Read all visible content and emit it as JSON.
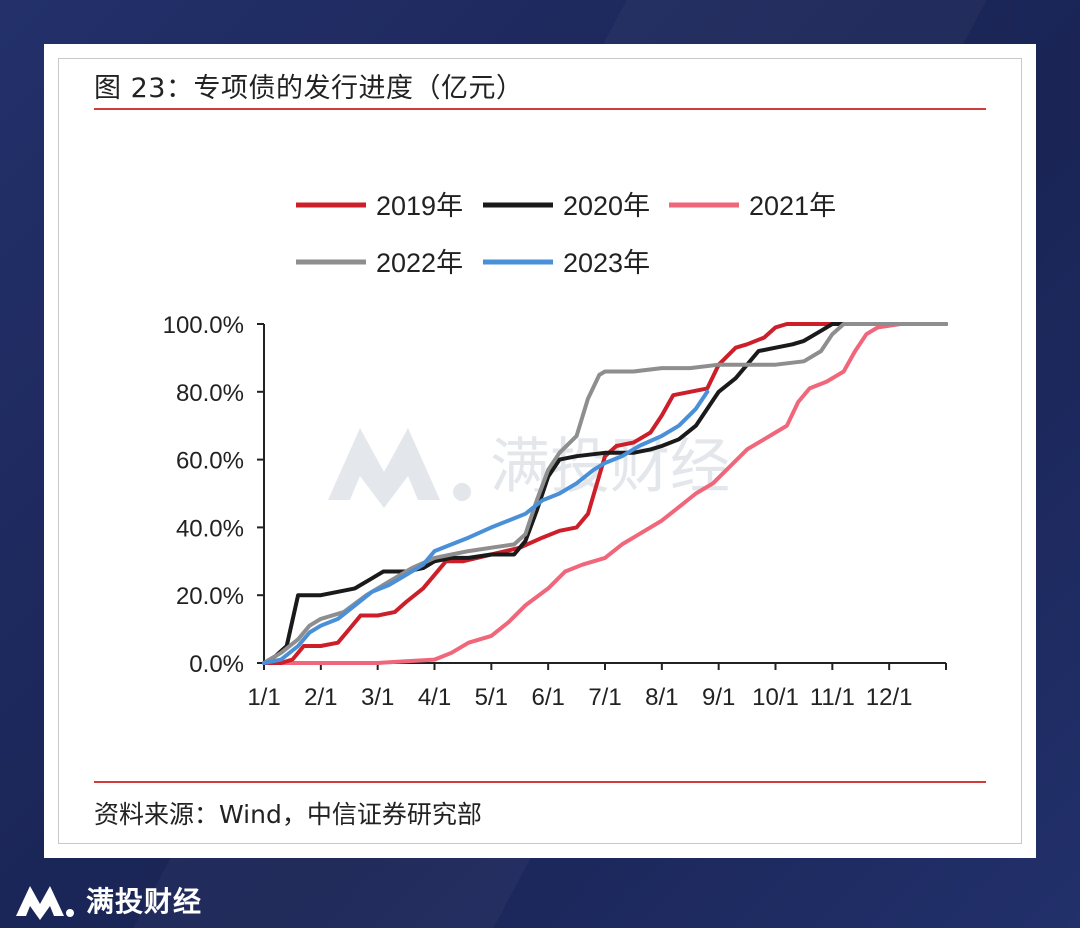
{
  "figure": {
    "title": "图 23：专项债的发行进度（亿元）",
    "source": "资料来源：Wind，中信证券研究部"
  },
  "watermark": {
    "text": "满投财经",
    "icon": "brand-m-logo-icon"
  },
  "brand": {
    "text": "满投财经",
    "icon": "brand-m-logo-icon"
  },
  "colors": {
    "2019": "#cc1f2a",
    "2020": "#1a1a1a",
    "2021": "#f0667a",
    "2022": "#8e8e8e",
    "2023": "#4a90d9"
  },
  "chart_data": {
    "type": "line",
    "title": "",
    "xlabel": "",
    "ylabel": "",
    "x_range": [
      0,
      12
    ],
    "ylim": [
      0,
      100
    ],
    "y_ticks": [
      "0.0%",
      "20.0%",
      "40.0%",
      "60.0%",
      "80.0%",
      "100.0%"
    ],
    "y_tick_values": [
      0,
      20,
      40,
      60,
      80,
      100
    ],
    "x_ticks": [
      "1/1",
      "2/1",
      "3/1",
      "4/1",
      "5/1",
      "6/1",
      "7/1",
      "8/1",
      "9/1",
      "10/1",
      "11/1",
      "12/1"
    ],
    "legend_position": "top",
    "grid": false,
    "series": [
      {
        "name": "2019年",
        "points": [
          [
            0,
            0
          ],
          [
            0.3,
            0
          ],
          [
            0.5,
            1
          ],
          [
            0.7,
            5
          ],
          [
            1.0,
            5
          ],
          [
            1.3,
            6
          ],
          [
            1.5,
            10
          ],
          [
            1.7,
            14
          ],
          [
            2.0,
            14
          ],
          [
            2.3,
            15
          ],
          [
            2.5,
            18
          ],
          [
            2.8,
            22
          ],
          [
            3.0,
            26
          ],
          [
            3.2,
            30
          ],
          [
            3.5,
            30
          ],
          [
            4.0,
            32
          ],
          [
            4.5,
            34
          ],
          [
            4.9,
            37
          ],
          [
            5.2,
            39
          ],
          [
            5.5,
            40
          ],
          [
            5.7,
            44
          ],
          [
            6.0,
            61
          ],
          [
            6.2,
            64
          ],
          [
            6.5,
            65
          ],
          [
            6.8,
            68
          ],
          [
            7.0,
            73
          ],
          [
            7.2,
            79
          ],
          [
            7.5,
            80
          ],
          [
            7.8,
            81
          ],
          [
            8.0,
            88
          ],
          [
            8.3,
            93
          ],
          [
            8.5,
            94
          ],
          [
            8.8,
            96
          ],
          [
            9.0,
            99
          ],
          [
            9.2,
            100
          ],
          [
            12,
            100
          ]
        ]
      },
      {
        "name": "2020年",
        "points": [
          [
            0,
            0
          ],
          [
            0.2,
            2
          ],
          [
            0.4,
            5
          ],
          [
            0.6,
            20
          ],
          [
            1.0,
            20
          ],
          [
            1.3,
            21
          ],
          [
            1.6,
            22
          ],
          [
            1.9,
            25
          ],
          [
            2.1,
            27
          ],
          [
            2.5,
            27
          ],
          [
            2.8,
            28
          ],
          [
            3.0,
            30
          ],
          [
            3.3,
            31
          ],
          [
            3.6,
            31
          ],
          [
            4.0,
            32
          ],
          [
            4.4,
            32
          ],
          [
            4.6,
            36
          ],
          [
            4.8,
            45
          ],
          [
            5.0,
            55
          ],
          [
            5.2,
            60
          ],
          [
            5.5,
            61
          ],
          [
            6.0,
            62
          ],
          [
            6.5,
            62
          ],
          [
            6.8,
            63
          ],
          [
            7.0,
            64
          ],
          [
            7.3,
            66
          ],
          [
            7.6,
            70
          ],
          [
            7.8,
            75
          ],
          [
            8.0,
            80
          ],
          [
            8.3,
            84
          ],
          [
            8.5,
            88
          ],
          [
            8.7,
            92
          ],
          [
            9.0,
            93
          ],
          [
            9.3,
            94
          ],
          [
            9.5,
            95
          ],
          [
            9.8,
            98
          ],
          [
            10.0,
            100
          ],
          [
            12,
            100
          ]
        ]
      },
      {
        "name": "2021年",
        "points": [
          [
            0,
            0
          ],
          [
            1,
            0
          ],
          [
            2,
            0
          ],
          [
            2.5,
            0.5
          ],
          [
            3.0,
            1
          ],
          [
            3.3,
            3
          ],
          [
            3.6,
            6
          ],
          [
            4.0,
            8
          ],
          [
            4.3,
            12
          ],
          [
            4.6,
            17
          ],
          [
            5.0,
            22
          ],
          [
            5.3,
            27
          ],
          [
            5.6,
            29
          ],
          [
            6.0,
            31
          ],
          [
            6.3,
            35
          ],
          [
            6.6,
            38
          ],
          [
            7.0,
            42
          ],
          [
            7.3,
            46
          ],
          [
            7.6,
            50
          ],
          [
            7.9,
            53
          ],
          [
            8.2,
            58
          ],
          [
            8.5,
            63
          ],
          [
            8.8,
            66
          ],
          [
            9.0,
            68
          ],
          [
            9.2,
            70
          ],
          [
            9.4,
            77
          ],
          [
            9.6,
            81
          ],
          [
            9.9,
            83
          ],
          [
            10.2,
            86
          ],
          [
            10.4,
            92
          ],
          [
            10.6,
            97
          ],
          [
            10.8,
            99
          ],
          [
            11.2,
            100
          ],
          [
            12,
            100
          ]
        ]
      },
      {
        "name": "2022年",
        "points": [
          [
            0,
            0
          ],
          [
            0.3,
            3
          ],
          [
            0.6,
            7
          ],
          [
            0.8,
            11
          ],
          [
            1.0,
            13
          ],
          [
            1.4,
            15
          ],
          [
            1.8,
            20
          ],
          [
            2.2,
            24
          ],
          [
            2.6,
            28
          ],
          [
            3.0,
            31
          ],
          [
            3.3,
            32
          ],
          [
            3.6,
            33
          ],
          [
            4.0,
            34
          ],
          [
            4.4,
            35
          ],
          [
            4.6,
            38
          ],
          [
            4.8,
            48
          ],
          [
            5.0,
            57
          ],
          [
            5.2,
            62
          ],
          [
            5.5,
            67
          ],
          [
            5.7,
            78
          ],
          [
            5.9,
            85
          ],
          [
            6.0,
            86
          ],
          [
            6.5,
            86
          ],
          [
            7.0,
            87
          ],
          [
            7.5,
            87
          ],
          [
            8.0,
            88
          ],
          [
            8.5,
            88
          ],
          [
            9.0,
            88
          ],
          [
            9.5,
            89
          ],
          [
            9.8,
            92
          ],
          [
            10.0,
            97
          ],
          [
            10.2,
            100
          ],
          [
            12,
            100
          ]
        ]
      },
      {
        "name": "2023年",
        "points": [
          [
            0,
            0
          ],
          [
            0.3,
            1
          ],
          [
            0.6,
            5
          ],
          [
            0.8,
            9
          ],
          [
            1.0,
            11
          ],
          [
            1.3,
            13
          ],
          [
            1.6,
            17
          ],
          [
            1.9,
            21
          ],
          [
            2.2,
            23
          ],
          [
            2.5,
            26
          ],
          [
            2.8,
            29
          ],
          [
            3.0,
            33
          ],
          [
            3.3,
            35
          ],
          [
            3.6,
            37
          ],
          [
            4.0,
            40
          ],
          [
            4.3,
            42
          ],
          [
            4.6,
            44
          ],
          [
            4.9,
            48
          ],
          [
            5.2,
            50
          ],
          [
            5.5,
            53
          ],
          [
            5.8,
            57
          ],
          [
            6.0,
            59
          ],
          [
            6.3,
            61
          ],
          [
            6.6,
            64
          ],
          [
            7.0,
            67
          ],
          [
            7.3,
            70
          ],
          [
            7.6,
            75
          ],
          [
            7.8,
            80
          ]
        ]
      }
    ]
  }
}
